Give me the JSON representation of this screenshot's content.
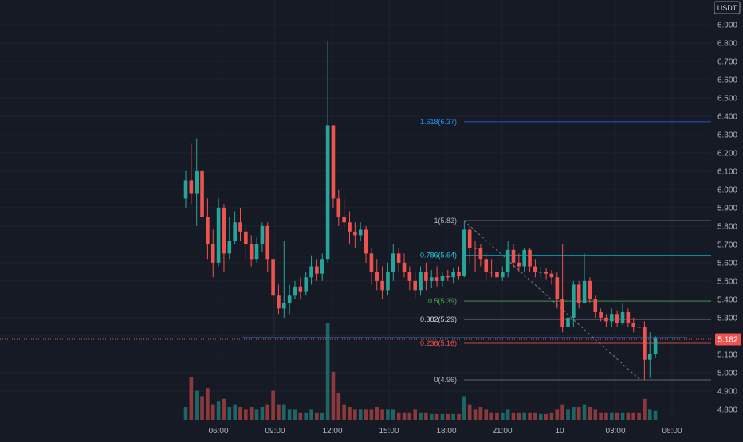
{
  "currency_label": "USDT",
  "price_tag": "5.182",
  "colors": {
    "background": "#161a25",
    "grid": "#1f2330",
    "up": "#26a69a",
    "down": "#ef5350",
    "axis_text": "#b2b5be",
    "fib_low": "#787b86",
    "fib_0382": "#787b86",
    "fib_05": "#4caf50",
    "fib_0786": "#00bcd4",
    "fib_1618": "#2962ff",
    "price_line": "#ef5350",
    "level_line": "#2962ff"
  },
  "chart_data": {
    "type": "candlestick",
    "y_range": [
      4.76,
      7.0
    ],
    "y_ticks": [
      "6.900",
      "6.800",
      "6.700",
      "6.600",
      "6.500",
      "6.400",
      "6.300",
      "6.200",
      "6.100",
      "6.000",
      "5.900",
      "5.800",
      "5.700",
      "5.600",
      "5.500",
      "5.400",
      "5.300",
      "5.200",
      "5.100",
      "5.000",
      "4.900",
      "4.800"
    ],
    "x_ticks": [
      "06:00",
      "09:00",
      "12:00",
      "15:00",
      "18:00",
      "21:00",
      "10",
      "03:00",
      "06:00"
    ],
    "current_price": 5.182,
    "horizontal_level": 5.19,
    "fib_levels": [
      {
        "label": "1.618(6.37)",
        "value": 6.37
      },
      {
        "label": "1(5.83)",
        "value": 5.83
      },
      {
        "label": "0.786(5.64)",
        "value": 5.64
      },
      {
        "label": "0.5(5.39)",
        "value": 5.39
      },
      {
        "label": "0.382(5.29)",
        "value": 5.29
      },
      {
        "label": "0.236(5.16)",
        "value": 5.16
      },
      {
        "label": "0(4.96)",
        "value": 4.96
      }
    ],
    "candles": [
      [
        5.95,
        6.05,
        6.1,
        5.9,
        "u",
        0.25
      ],
      [
        6.05,
        5.98,
        6.25,
        5.92,
        "d",
        0.8
      ],
      [
        5.98,
        6.1,
        6.28,
        5.8,
        "u",
        0.55
      ],
      [
        6.1,
        5.85,
        6.2,
        5.82,
        "d",
        0.45
      ],
      [
        5.85,
        5.7,
        5.95,
        5.62,
        "d",
        0.6
      ],
      [
        5.7,
        5.6,
        5.78,
        5.52,
        "d",
        0.3
      ],
      [
        5.6,
        5.9,
        5.95,
        5.58,
        "u",
        0.35
      ],
      [
        5.9,
        5.65,
        5.92,
        5.55,
        "d",
        0.4
      ],
      [
        5.65,
        5.72,
        5.85,
        5.62,
        "u",
        0.25
      ],
      [
        5.72,
        5.82,
        5.88,
        5.7,
        "u",
        0.3
      ],
      [
        5.82,
        5.77,
        5.9,
        5.72,
        "d",
        0.25
      ],
      [
        5.77,
        5.7,
        5.8,
        5.62,
        "d",
        0.2
      ],
      [
        5.7,
        5.62,
        5.75,
        5.58,
        "d",
        0.25
      ],
      [
        5.62,
        5.7,
        5.74,
        5.6,
        "u",
        0.2
      ],
      [
        5.7,
        5.8,
        5.82,
        5.66,
        "u",
        0.25
      ],
      [
        5.8,
        5.62,
        5.82,
        5.55,
        "d",
        0.3
      ],
      [
        5.62,
        5.42,
        5.65,
        5.2,
        "d",
        0.55
      ],
      [
        5.42,
        5.35,
        5.48,
        5.32,
        "d",
        0.3
      ],
      [
        5.35,
        5.38,
        5.72,
        5.3,
        "u",
        0.3
      ],
      [
        5.38,
        5.42,
        5.48,
        5.32,
        "u",
        0.2
      ],
      [
        5.42,
        5.47,
        5.5,
        5.4,
        "u",
        0.2
      ],
      [
        5.47,
        5.44,
        5.52,
        5.4,
        "d",
        0.15
      ],
      [
        5.44,
        5.52,
        5.55,
        5.42,
        "u",
        0.15
      ],
      [
        5.52,
        5.58,
        5.64,
        5.48,
        "u",
        0.2
      ],
      [
        5.58,
        5.54,
        5.62,
        5.5,
        "d",
        0.15
      ],
      [
        5.54,
        5.62,
        5.65,
        5.5,
        "u",
        0.15
      ],
      [
        5.62,
        6.35,
        6.81,
        5.6,
        "u",
        1.8
      ],
      [
        6.35,
        5.95,
        6.35,
        5.9,
        "d",
        0.9
      ],
      [
        5.95,
        5.85,
        6.0,
        5.8,
        "d",
        0.5
      ],
      [
        5.85,
        5.82,
        5.95,
        5.78,
        "d",
        0.3
      ],
      [
        5.82,
        5.77,
        5.88,
        5.7,
        "d",
        0.25
      ],
      [
        5.77,
        5.75,
        5.82,
        5.68,
        "d",
        0.2
      ],
      [
        5.75,
        5.78,
        5.82,
        5.72,
        "u",
        0.2
      ],
      [
        5.78,
        5.65,
        5.8,
        5.6,
        "d",
        0.2
      ],
      [
        5.65,
        5.55,
        5.68,
        5.48,
        "d",
        0.2
      ],
      [
        5.55,
        5.5,
        5.62,
        5.45,
        "d",
        0.25
      ],
      [
        5.5,
        5.45,
        5.58,
        5.4,
        "d",
        0.2
      ],
      [
        5.45,
        5.55,
        5.6,
        5.42,
        "u",
        0.2
      ],
      [
        5.55,
        5.65,
        5.7,
        5.5,
        "u",
        0.2
      ],
      [
        5.65,
        5.6,
        5.68,
        5.55,
        "d",
        0.15
      ],
      [
        5.6,
        5.55,
        5.65,
        5.52,
        "d",
        0.15
      ],
      [
        5.55,
        5.5,
        5.58,
        5.45,
        "d",
        0.15
      ],
      [
        5.5,
        5.45,
        5.55,
        5.4,
        "d",
        0.2
      ],
      [
        5.45,
        5.55,
        5.58,
        5.42,
        "u",
        0.15
      ],
      [
        5.55,
        5.5,
        5.6,
        5.45,
        "d",
        0.15
      ],
      [
        5.5,
        5.52,
        5.56,
        5.46,
        "u",
        0.12
      ],
      [
        5.52,
        5.5,
        5.58,
        5.47,
        "d",
        0.12
      ],
      [
        5.5,
        5.53,
        5.55,
        5.47,
        "u",
        0.12
      ],
      [
        5.53,
        5.52,
        5.56,
        5.5,
        "d",
        0.12
      ],
      [
        5.52,
        5.55,
        5.57,
        5.49,
        "u",
        0.12
      ],
      [
        5.55,
        5.53,
        5.58,
        5.51,
        "d",
        0.12
      ],
      [
        5.53,
        5.78,
        5.83,
        5.52,
        "u",
        0.45
      ],
      [
        5.78,
        5.68,
        5.8,
        5.6,
        "d",
        0.3
      ],
      [
        5.68,
        5.68,
        5.72,
        5.55,
        "d",
        0.2
      ],
      [
        5.68,
        5.62,
        5.7,
        5.58,
        "d",
        0.25
      ],
      [
        5.62,
        5.55,
        5.65,
        5.5,
        "d",
        0.2
      ],
      [
        5.55,
        5.55,
        5.62,
        5.52,
        "d",
        0.15
      ],
      [
        5.55,
        5.52,
        5.6,
        5.48,
        "d",
        0.15
      ],
      [
        5.52,
        5.55,
        5.58,
        5.5,
        "u",
        0.15
      ],
      [
        5.55,
        5.67,
        5.72,
        5.52,
        "u",
        0.2
      ],
      [
        5.67,
        5.6,
        5.7,
        5.57,
        "d",
        0.15
      ],
      [
        5.6,
        5.58,
        5.65,
        5.55,
        "d",
        0.15
      ],
      [
        5.58,
        5.67,
        5.68,
        5.55,
        "u",
        0.15
      ],
      [
        5.67,
        5.58,
        5.68,
        5.55,
        "d",
        0.15
      ],
      [
        5.58,
        5.55,
        5.62,
        5.52,
        "d",
        0.15
      ],
      [
        5.55,
        5.55,
        5.58,
        5.52,
        "u",
        0.12
      ],
      [
        5.55,
        5.54,
        5.57,
        5.51,
        "d",
        0.12
      ],
      [
        5.54,
        5.52,
        5.56,
        5.48,
        "d",
        0.15
      ],
      [
        5.52,
        5.4,
        5.55,
        5.35,
        "d",
        0.2
      ],
      [
        5.4,
        5.25,
        5.7,
        5.22,
        "d",
        0.3
      ],
      [
        5.25,
        5.3,
        5.35,
        5.22,
        "u",
        0.2
      ],
      [
        5.3,
        5.48,
        5.5,
        5.25,
        "u",
        0.25
      ],
      [
        5.48,
        5.38,
        5.5,
        5.35,
        "d",
        0.25
      ],
      [
        5.38,
        5.5,
        5.65,
        5.38,
        "u",
        0.3
      ],
      [
        5.5,
        5.4,
        5.52,
        5.38,
        "d",
        0.25
      ],
      [
        5.4,
        5.33,
        5.42,
        5.3,
        "d",
        0.2
      ],
      [
        5.33,
        5.3,
        5.35,
        5.28,
        "d",
        0.15
      ],
      [
        5.3,
        5.28,
        5.32,
        5.25,
        "d",
        0.15
      ],
      [
        5.28,
        5.32,
        5.35,
        5.25,
        "u",
        0.15
      ],
      [
        5.32,
        5.27,
        5.34,
        5.25,
        "d",
        0.15
      ],
      [
        5.27,
        5.33,
        5.38,
        5.26,
        "u",
        0.15
      ],
      [
        5.33,
        5.27,
        5.35,
        5.25,
        "d",
        0.15
      ],
      [
        5.27,
        5.25,
        5.3,
        5.22,
        "d",
        0.15
      ],
      [
        5.25,
        5.25,
        5.28,
        5.2,
        "d",
        0.15
      ],
      [
        5.25,
        5.07,
        5.28,
        4.96,
        "d",
        0.4
      ],
      [
        5.07,
        5.1,
        5.22,
        4.97,
        "u",
        0.2
      ],
      [
        5.1,
        5.19,
        5.2,
        5.08,
        "u",
        0.18
      ]
    ]
  }
}
